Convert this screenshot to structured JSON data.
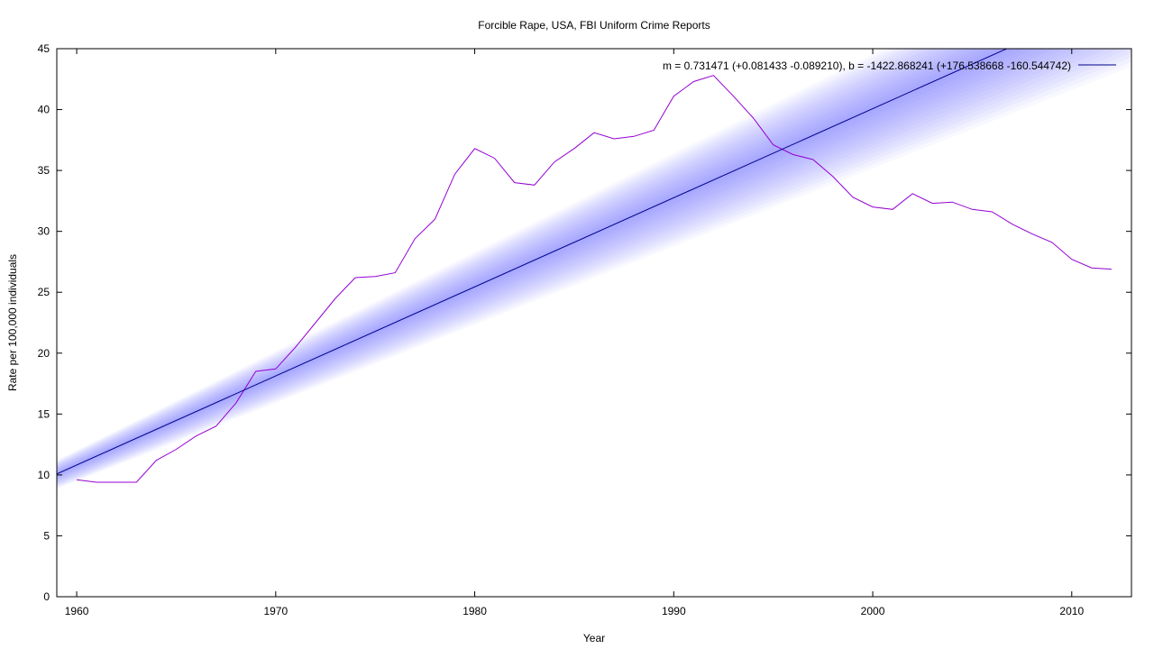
{
  "chart_data": {
    "type": "line",
    "title": "Forcible Rape, USA, FBI Uniform Crime Reports",
    "xlabel": "Year",
    "ylabel": "Rate per 100,000 individuals",
    "xlim": [
      1959,
      2013
    ],
    "ylim": [
      0,
      45
    ],
    "x_ticks": [
      1960,
      1970,
      1980,
      1990,
      2000,
      2010
    ],
    "y_ticks": [
      0,
      5,
      10,
      15,
      20,
      25,
      30,
      35,
      40,
      45
    ],
    "grid": false,
    "legend_position": "top-right",
    "series": [
      {
        "x": [
          1960,
          1961,
          1962,
          1963,
          1964,
          1965,
          1966,
          1967,
          1968,
          1969,
          1970,
          1971,
          1972,
          1973,
          1974,
          1975,
          1976,
          1977,
          1978,
          1979,
          1980,
          1981,
          1982,
          1983,
          1984,
          1985,
          1986,
          1987,
          1988,
          1989,
          1990,
          1991,
          1992,
          1993,
          1994,
          1995,
          1996,
          1997,
          1998,
          1999,
          2000,
          2001,
          2002,
          2003,
          2004,
          2005,
          2006,
          2007,
          2008,
          2009,
          2010,
          2011,
          2012
        ],
        "values": [
          9.6,
          9.4,
          9.4,
          9.4,
          11.2,
          12.1,
          13.2,
          14.0,
          15.9,
          18.5,
          18.7,
          20.5,
          22.5,
          24.5,
          26.2,
          26.3,
          26.6,
          29.4,
          31.0,
          34.7,
          36.8,
          36.0,
          34.0,
          33.8,
          35.7,
          36.8,
          38.1,
          37.6,
          37.8,
          38.3,
          41.1,
          42.3,
          42.8,
          41.1,
          39.3,
          37.1,
          36.3,
          35.9,
          34.5,
          32.8,
          32.0,
          31.8,
          33.1,
          32.3,
          32.4,
          31.8,
          31.6,
          30.6,
          29.8,
          29.1,
          27.7,
          27.0,
          26.9
        ],
        "color": "#9400d3"
      },
      {
        "name": "m = 0.731471 (+0.081433 -0.089210), b = -1422.868241 (+176.538668 -160.544742)",
        "type": "fit",
        "slope": 0.731471,
        "intercept": -1422.868241,
        "slope_err_plus": 0.081433,
        "slope_err_minus": 0.08921,
        "intercept_err_plus": 176.538668,
        "intercept_err_minus": 160.544742,
        "color": "#00008b",
        "band_color": "#5555ff"
      }
    ]
  }
}
